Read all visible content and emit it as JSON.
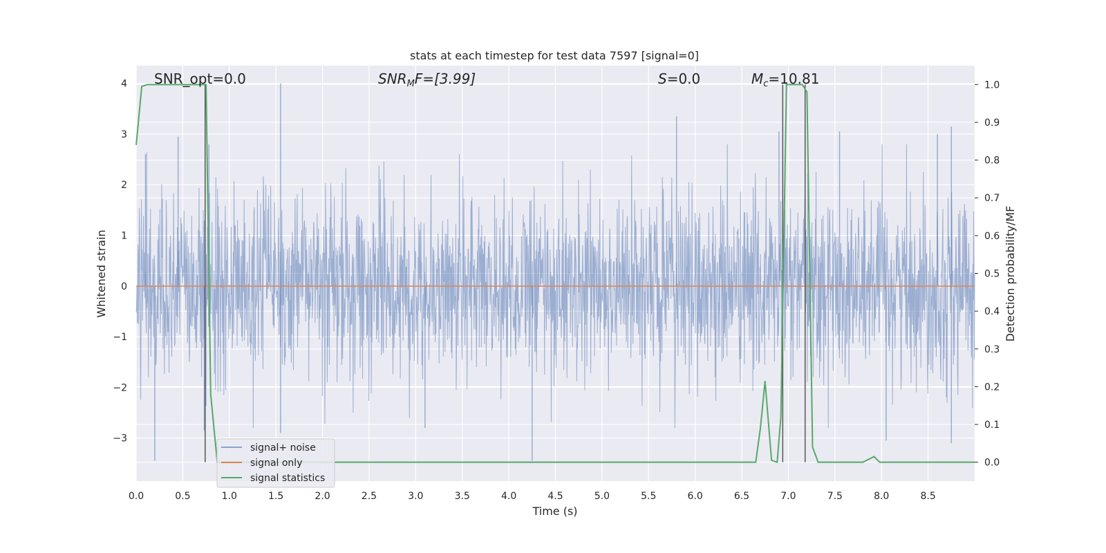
{
  "chart_data": {
    "type": "line",
    "title": "stats at each timestep for test data 7597 [signal=0]",
    "xlabel": "Time (s)",
    "ylabel_left": "Whitened strain",
    "ylabel_right": "Detection probability/MF",
    "xlim": [
      0.0,
      9.0
    ],
    "ylim_left": [
      -3.85,
      4.35
    ],
    "ylim_right": [
      -0.05,
      1.05
    ],
    "x_ticks": [
      "0.0",
      "0.5",
      "1.0",
      "1.5",
      "2.0",
      "2.5",
      "3.0",
      "3.5",
      "4.0",
      "4.5",
      "5.0",
      "5.5",
      "6.0",
      "6.5",
      "7.0",
      "7.5",
      "8.0",
      "8.5"
    ],
    "y_ticks_left": [
      "4",
      "3",
      "2",
      "1",
      "0",
      "−1",
      "−2",
      "−3"
    ],
    "y_ticks_right": [
      "1.0",
      "0.9",
      "0.8",
      "0.7",
      "0.6",
      "0.5",
      "0.4",
      "0.3",
      "0.2",
      "0.1",
      "0.0"
    ],
    "grid": true,
    "legend_position": "lower-left",
    "annotations": {
      "snr_opt": "SNR_opt=0.0",
      "snr_mf_name": "SNR",
      "snr_mf_sub": "M",
      "snr_mf_rest": "F=[3.99]",
      "s_name": "S",
      "s_rest": "=0.0",
      "mc_name": "M",
      "mc_sub": "c",
      "mc_rest": "=10.81"
    },
    "series": [
      {
        "name": "signal+ noise",
        "color": "#4c72b0",
        "axis": "left",
        "noise_envelope": {
          "typical_abs": 1.25,
          "peak_max": 4.0,
          "peak_min": -3.5
        },
        "spikes": [
          {
            "x": 0.1,
            "y": 2.6
          },
          {
            "x": 0.2,
            "y": -3.45
          },
          {
            "x": 0.45,
            "y": 2.95
          },
          {
            "x": 0.73,
            "y": -2.85
          },
          {
            "x": 0.78,
            "y": 2.8
          },
          {
            "x": 1.55,
            "y": 4.0
          },
          {
            "x": 1.55,
            "y": -2.9
          },
          {
            "x": 3.1,
            "y": -2.8
          },
          {
            "x": 4.25,
            "y": -3.45
          },
          {
            "x": 5.8,
            "y": 3.35
          },
          {
            "x": 6.9,
            "y": 3.05
          },
          {
            "x": 7.55,
            "y": 3.05
          },
          {
            "x": 8.05,
            "y": -3.05
          },
          {
            "x": 8.6,
            "y": 3.0
          },
          {
            "x": 8.75,
            "y": 3.15
          },
          {
            "x": 8.75,
            "y": -3.1
          }
        ]
      },
      {
        "name": "signal only",
        "color": "#dd8452",
        "axis": "left",
        "x": [
          0.0,
          9.0
        ],
        "y": [
          0.0,
          0.0
        ]
      },
      {
        "name": "signal statistics",
        "color": "#55a868",
        "axis": "right",
        "x": [
          0.0,
          0.06,
          0.12,
          0.2,
          0.5,
          0.72,
          0.75,
          0.8,
          0.87,
          0.9,
          1.5,
          2.0,
          3.0,
          4.0,
          5.0,
          6.0,
          6.5,
          6.6,
          6.65,
          6.7,
          6.75,
          6.82,
          6.88,
          6.92,
          6.98,
          7.0,
          7.15,
          7.2,
          7.26,
          7.32,
          7.5,
          7.8,
          7.88,
          7.92,
          7.98,
          8.5,
          9.0
        ],
        "y": [
          0.84,
          0.995,
          1.0,
          1.0,
          1.0,
          1.0,
          1.0,
          0.18,
          0.0,
          0.0,
          0.0,
          0.0,
          0.0,
          0.0,
          0.0,
          0.0,
          0.0,
          0.0,
          0.0,
          0.09,
          0.215,
          0.005,
          0.0,
          0.12,
          1.0,
          1.0,
          1.0,
          0.98,
          0.04,
          0.0,
          0.0,
          0.0,
          0.01,
          0.015,
          0.0,
          0.0,
          0.0
        ]
      }
    ],
    "vertical_lines": [
      {
        "x": 0.74,
        "y0": 0.0,
        "y1": 1.0
      },
      {
        "x": 6.94,
        "y0": 0.0,
        "y1": 1.0
      },
      {
        "x": 7.18,
        "y0": 0.0,
        "y1": 1.0
      }
    ]
  }
}
